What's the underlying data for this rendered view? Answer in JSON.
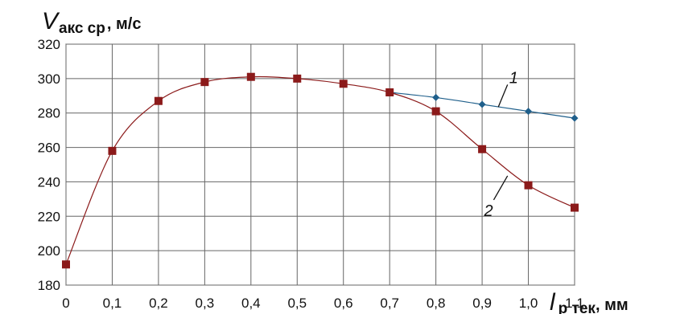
{
  "chart_data": {
    "type": "line",
    "x": [
      0,
      0.1,
      0.2,
      0.3,
      0.4,
      0.5,
      0.6,
      0.7,
      0.8,
      0.9,
      1.0,
      1.1
    ],
    "x_tick_labels": [
      "0",
      "0,1",
      "0,2",
      "0,3",
      "0,4",
      "0,5",
      "0,6",
      "0,7",
      "0,8",
      "0,9",
      "1,0",
      "1,1"
    ],
    "y_ticks": [
      180,
      200,
      220,
      240,
      260,
      280,
      300,
      320
    ],
    "xlim": [
      0,
      1.1
    ],
    "ylim": [
      180,
      320
    ],
    "grid": true,
    "ylabel": {
      "symbol": "V",
      "subscript": "акс ср",
      "unit": ", м/с"
    },
    "xlabel": {
      "symbol": "l",
      "subscript": "р тек",
      "unit": ", мм"
    },
    "series": [
      {
        "name": "1",
        "color": "#1f5f8b",
        "marker": "diamond",
        "x": [
          0.7,
          0.8,
          0.9,
          1.0,
          1.1
        ],
        "values": [
          292,
          289,
          285,
          281,
          277
        ]
      },
      {
        "name": "2",
        "color": "#8b1a1a",
        "marker": "square",
        "x": [
          0,
          0.1,
          0.2,
          0.3,
          0.4,
          0.5,
          0.6,
          0.7,
          0.8,
          0.9,
          1.0,
          1.1
        ],
        "values": [
          192,
          258,
          287,
          298,
          301,
          300,
          297,
          292,
          281,
          259,
          238,
          225
        ]
      }
    ]
  }
}
